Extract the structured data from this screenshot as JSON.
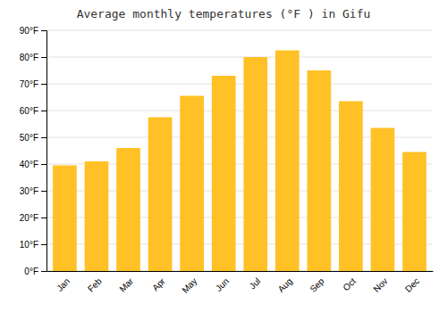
{
  "chart_data": {
    "type": "bar",
    "title": "Average monthly temperatures (°F ) in Gifu",
    "categories": [
      "Jan",
      "Feb",
      "Mar",
      "Apr",
      "May",
      "Jun",
      "Jul",
      "Aug",
      "Sep",
      "Oct",
      "Nov",
      "Dec"
    ],
    "values": [
      39.5,
      41.0,
      46.0,
      57.5,
      65.5,
      73.0,
      80.0,
      82.5,
      75.0,
      63.5,
      53.5,
      44.5
    ],
    "color": "#FFC125",
    "ylim": [
      0,
      90
    ],
    "yticks": [
      {
        "value": 0,
        "label": "0°F"
      },
      {
        "value": 10,
        "label": "10°F"
      },
      {
        "value": 20,
        "label": "20°F"
      },
      {
        "value": 30,
        "label": "30°F"
      },
      {
        "value": 40,
        "label": "40°F"
      },
      {
        "value": 50,
        "label": "50°F"
      },
      {
        "value": 60,
        "label": "60°F"
      },
      {
        "value": 70,
        "label": "70°F"
      },
      {
        "value": 80,
        "label": "80°F"
      },
      {
        "value": 90,
        "label": "90°F"
      }
    ],
    "grid": true
  }
}
